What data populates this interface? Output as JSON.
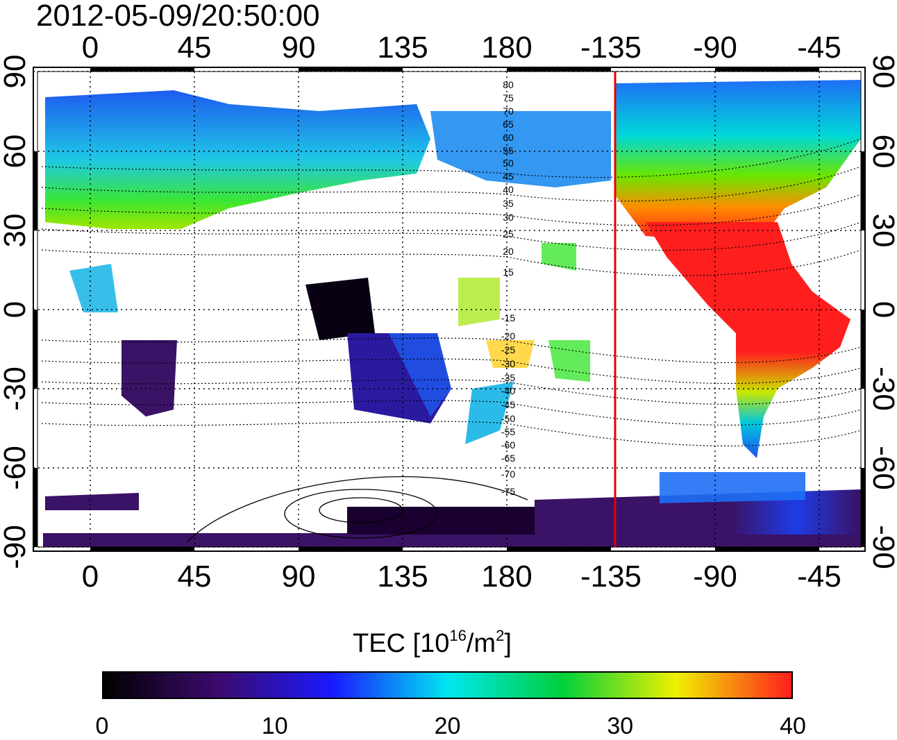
{
  "title": "2012-05-09/20:50:00",
  "top_x_ticks": [
    "0",
    "45",
    "90",
    "135",
    "180",
    "-135",
    "-90",
    "-45"
  ],
  "bottom_x_ticks": [
    "0",
    "45",
    "90",
    "135",
    "180",
    "-135",
    "-90",
    "-45"
  ],
  "left_y_ticks": [
    "90",
    "60",
    "30",
    "0",
    "-30",
    "-60",
    "-90"
  ],
  "right_y_ticks": [
    "90",
    "60",
    "30",
    "0",
    "-30",
    "-60",
    "-90"
  ],
  "contour_labels": [
    "80",
    "75",
    "70",
    "65",
    "60",
    "55",
    "50",
    "45",
    "40",
    "35",
    "30",
    "25",
    "20",
    "15",
    "-15",
    "-20",
    "-25",
    "-30",
    "-35",
    "-40",
    "-45",
    "-50",
    "-55",
    "-60",
    "-65",
    "-70",
    "-75"
  ],
  "colorbar": {
    "title": "TEC  [10",
    "exp1": "16",
    "mid": "/m",
    "exp2": "2",
    "close": "]",
    "ticks": [
      "0",
      "10",
      "20",
      "30",
      "40"
    ],
    "range": [
      0,
      40
    ]
  },
  "colors": {
    "red_line": "#e60000",
    "scale": [
      "#000000",
      "#3c0a6e",
      "#1a1aff",
      "#00e6f0",
      "#00d03c",
      "#f0f000",
      "#ff1e1e"
    ]
  },
  "map_data": {
    "projection": "cylindrical",
    "lon_range": [
      -25,
      330
    ],
    "lat_range": [
      -90,
      90
    ],
    "red_meridian_lon": -135
  }
}
